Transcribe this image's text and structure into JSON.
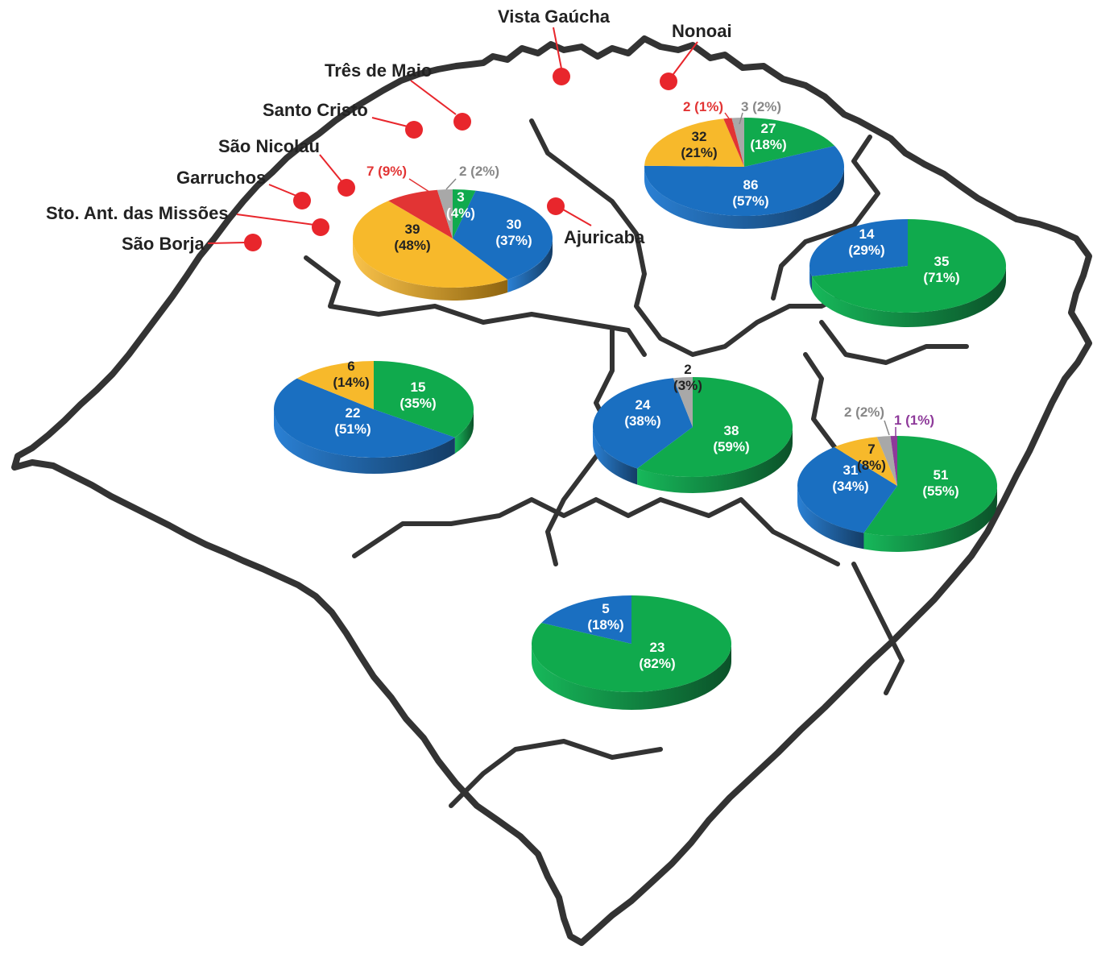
{
  "colors": {
    "blue": "#1a6fc1",
    "yellow": "#f7b92b",
    "green": "#10aa4d",
    "red": "#e23434",
    "gray": "#a8a8a8",
    "purple": "#8e3a9a",
    "city_marker": "#e8262c",
    "outline": "#333333"
  },
  "cities": [
    {
      "id": "vista-gaucha",
      "name": "Vista Gaúcha"
    },
    {
      "id": "nonoai",
      "name": "Nonoai"
    },
    {
      "id": "tres-de-maio",
      "name": "Três de Maio"
    },
    {
      "id": "santo-cristo",
      "name": "Santo Cristo"
    },
    {
      "id": "sao-nicolau",
      "name": "São Nicolau"
    },
    {
      "id": "garruchos",
      "name": "Garruchos"
    },
    {
      "id": "sto-ant-missoes",
      "name": "Sto. Ant. das Missões"
    },
    {
      "id": "sao-borja",
      "name": "São Borja"
    },
    {
      "id": "ajuricaba",
      "name": "Ajuricaba"
    }
  ],
  "chart_data": [
    {
      "type": "pie",
      "id": "northwest",
      "slices": [
        {
          "value": 3,
          "pct": "(4%)",
          "color": "green"
        },
        {
          "value": 30,
          "pct": "(37%)",
          "color": "blue"
        },
        {
          "value": 39,
          "pct": "(48%)",
          "color": "yellow"
        },
        {
          "value": 7,
          "pct": "(9%)",
          "color": "red"
        },
        {
          "value": 2,
          "pct": "(2%)",
          "color": "gray"
        }
      ]
    },
    {
      "type": "pie",
      "id": "north",
      "slices": [
        {
          "value": 27,
          "pct": "(18%)",
          "color": "green"
        },
        {
          "value": 86,
          "pct": "(57%)",
          "color": "blue"
        },
        {
          "value": 32,
          "pct": "(21%)",
          "color": "yellow"
        },
        {
          "value": 2,
          "pct": "(1%)",
          "color": "red"
        },
        {
          "value": 3,
          "pct": "(2%)",
          "color": "gray"
        }
      ]
    },
    {
      "type": "pie",
      "id": "northeast",
      "slices": [
        {
          "value": 35,
          "pct": "(71%)",
          "color": "green"
        },
        {
          "value": 14,
          "pct": "(29%)",
          "color": "blue"
        }
      ]
    },
    {
      "type": "pie",
      "id": "west",
      "slices": [
        {
          "value": 15,
          "pct": "(35%)",
          "color": "green"
        },
        {
          "value": 22,
          "pct": "(51%)",
          "color": "blue"
        },
        {
          "value": 6,
          "pct": "(14%)",
          "color": "yellow"
        }
      ]
    },
    {
      "type": "pie",
      "id": "center",
      "slices": [
        {
          "value": 38,
          "pct": "(59%)",
          "color": "green"
        },
        {
          "value": 24,
          "pct": "(38%)",
          "color": "blue"
        },
        {
          "value": 2,
          "pct": "(3%)",
          "color": "gray"
        }
      ]
    },
    {
      "type": "pie",
      "id": "east",
      "slices": [
        {
          "value": 51,
          "pct": "(55%)",
          "color": "green"
        },
        {
          "value": 31,
          "pct": "(34%)",
          "color": "blue"
        },
        {
          "value": 7,
          "pct": "(8%)",
          "color": "yellow"
        },
        {
          "value": 2,
          "pct": "(2%)",
          "color": "gray"
        },
        {
          "value": 1,
          "pct": "(1%)",
          "color": "purple"
        }
      ]
    },
    {
      "type": "pie",
      "id": "south",
      "slices": [
        {
          "value": 23,
          "pct": "(82%)",
          "color": "green"
        },
        {
          "value": 5,
          "pct": "(18%)",
          "color": "blue"
        }
      ]
    }
  ]
}
